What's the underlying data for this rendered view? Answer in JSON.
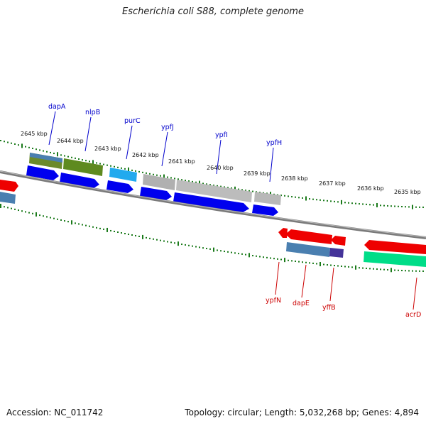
{
  "title": "Escherichia coli S88, complete genome",
  "footer": {
    "accession": "Accession: NC_011742",
    "summary": "Topology: circular; Length: 5,032,268 bp; Genes: 4,894"
  },
  "colors": {
    "plus_strand_label": "#0000cc",
    "minus_strand_label": "#cc0000",
    "backbone": "#808080",
    "tick_marks": "#1a7a1a"
  },
  "scale_labels": [
    "2645 kbp",
    "2644 kbp",
    "2643 kbp",
    "2642 kbp",
    "2641 kbp",
    "2640 kbp",
    "2639 kbp",
    "2638 kbp",
    "2637 kbp",
    "2636 kbp",
    "2635 kbp"
  ],
  "genes_plus": [
    "dapA",
    "nlpB",
    "purC",
    "ypfJ",
    "ypfI",
    "ypfH"
  ],
  "genes_minus": [
    "ypfN",
    "dapE",
    "yffB",
    "acrD"
  ]
}
